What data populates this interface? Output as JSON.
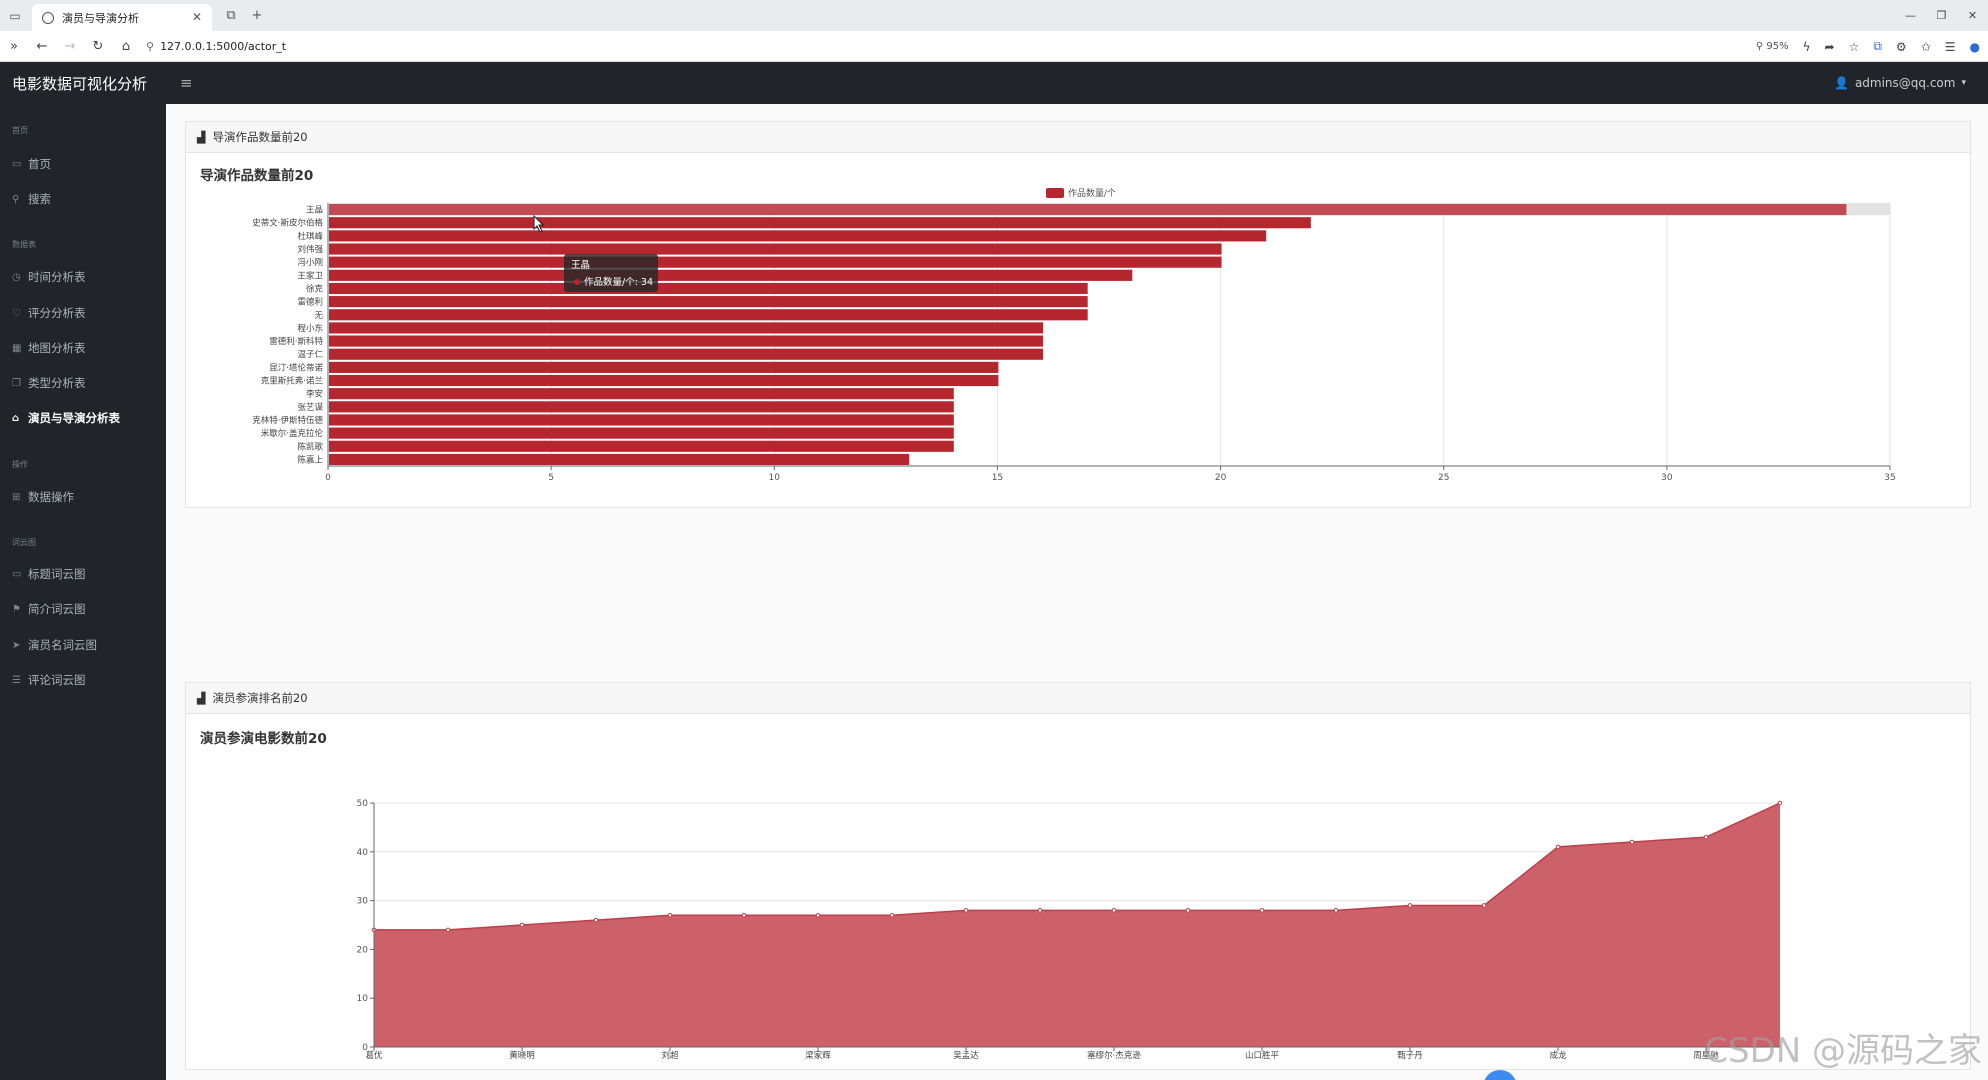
{
  "browser": {
    "tab_title": "演员与导演分析",
    "url": "127.0.0.1:5000/actor_t",
    "zoom": "95%"
  },
  "app": {
    "brand": "电影数据可视化分析",
    "user": "admins@qq.com"
  },
  "sidebar": {
    "sections": [
      {
        "heading": "首页",
        "items": [
          "首页",
          "搜索"
        ]
      },
      {
        "heading": "数据表",
        "items": [
          "时间分析表",
          "评分分析表",
          "地图分析表",
          "类型分析表",
          "演员与导演分析表"
        ]
      },
      {
        "heading": "操作",
        "items": [
          "数据操作"
        ]
      },
      {
        "heading": "词云图",
        "items": [
          "标题词云图",
          "简介词云图",
          "演员名词云图",
          "评论词云图"
        ]
      }
    ],
    "active": "演员与导演分析表"
  },
  "cards": {
    "director": {
      "header": "导演作品数量前20",
      "title": "导演作品数量前20"
    },
    "actor": {
      "header": "演员参演排名前20",
      "title": "演员参演电影数前20"
    }
  },
  "tooltip": {
    "name": "王晶",
    "text": "作品数量/个: 34"
  },
  "watermark": "CSDN @源码之家",
  "colors": {
    "bar": "#b5262f",
    "area": "#cc6169",
    "line": "#bf3d48"
  },
  "chart_data": [
    {
      "type": "bar",
      "orientation": "horizontal",
      "title": "导演作品数量前20",
      "legend": "作品数量/个",
      "legend_position": "top-center",
      "categories": [
        "王晶",
        "史蒂文·斯皮尔伯格",
        "杜琪峰",
        "刘伟强",
        "冯小刚",
        "王家卫",
        "徐克",
        "雷德利",
        "无",
        "程小东",
        "雷德利·斯科特",
        "温子仁",
        "昆汀·塔伦蒂诺",
        "克里斯托弗·诺兰",
        "李安",
        "张艺谋",
        "克林特·伊斯特伍德",
        "米歇尔·盖克拉伦",
        "陈凯歌",
        "陈嘉上"
      ],
      "values": [
        34,
        22,
        21,
        20,
        20,
        18,
        17,
        17,
        17,
        16,
        16,
        16,
        15,
        15,
        14,
        14,
        14,
        14,
        14,
        13
      ],
      "xlim": [
        0,
        35
      ],
      "xticks": [
        "0",
        "5",
        "10",
        "15",
        "20",
        "25",
        "30",
        "35"
      ],
      "grid": true
    },
    {
      "type": "area",
      "title": "演员参演电影数前20",
      "categories": [
        "葛优",
        "",
        "黄晓明",
        "",
        "刘超",
        "",
        "梁家辉",
        "",
        "吴孟达",
        "",
        "塞缪尔·杰克逊",
        "",
        "山口胜平",
        "",
        "甄子丹",
        "",
        "成龙",
        "",
        "周星驰",
        ""
      ],
      "values": [
        24,
        24,
        25,
        26,
        27,
        27,
        27,
        27,
        28,
        28,
        28,
        28,
        28,
        28,
        29,
        29,
        41,
        42,
        43,
        50
      ],
      "ylim": [
        0,
        50
      ],
      "yticks": [
        "0",
        "10",
        "20",
        "30",
        "40",
        "50"
      ],
      "grid": true
    }
  ]
}
